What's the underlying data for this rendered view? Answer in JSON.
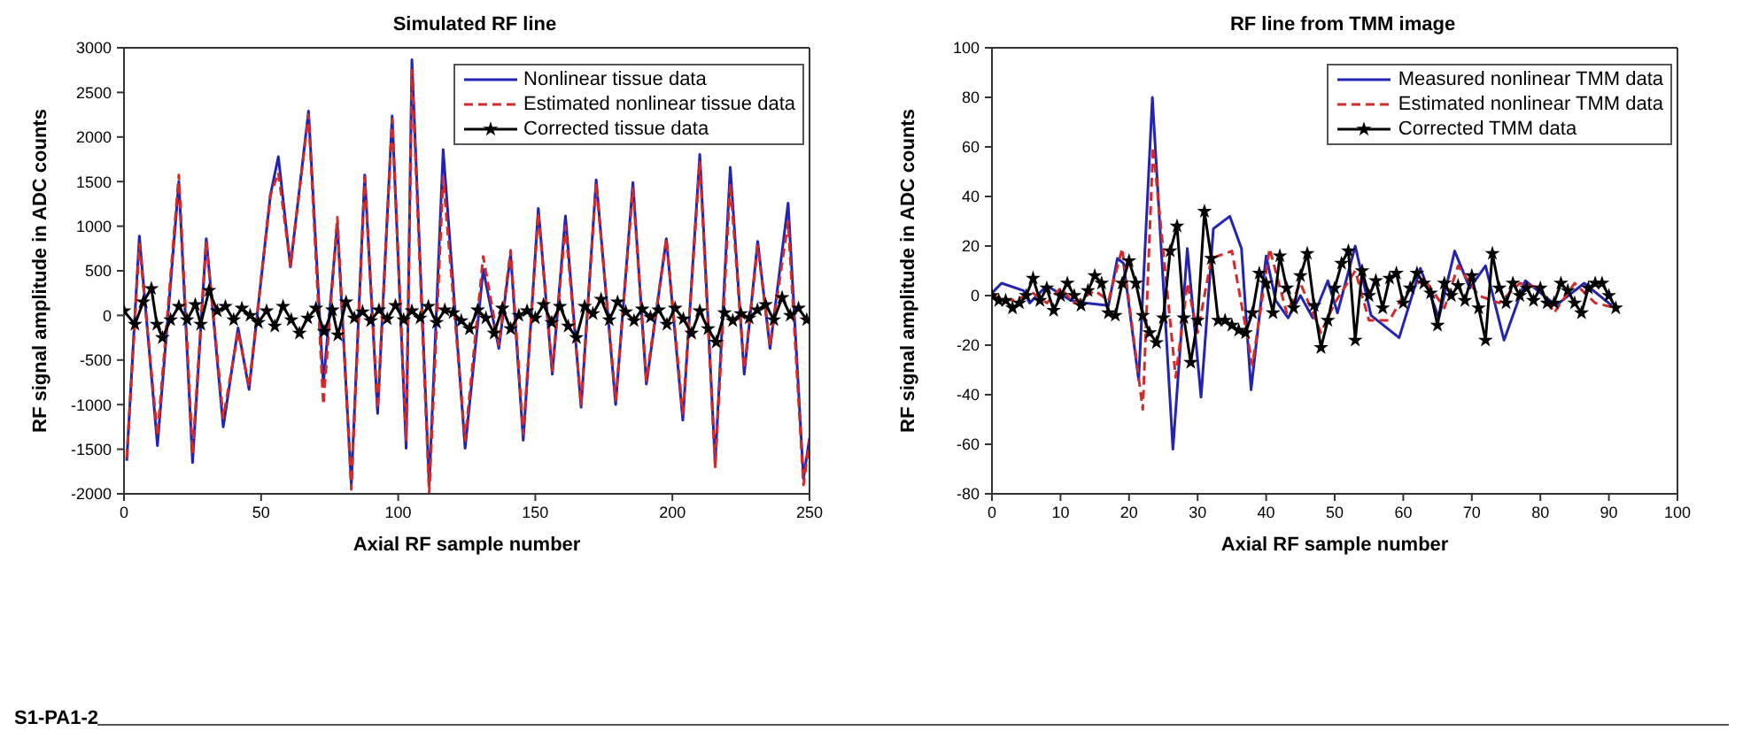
{
  "chart_data": [
    {
      "type": "line",
      "title": "Simulated RF line",
      "xlabel": "Axial RF sample number",
      "ylabel": "RF signal amplitude in ADC counts",
      "xlim": [
        0,
        250
      ],
      "xticks": [
        0,
        50,
        100,
        150,
        200,
        250
      ],
      "ylim": [
        -2000,
        3000
      ],
      "yticks": [
        -2000,
        -1500,
        -1000,
        -500,
        0,
        500,
        1000,
        1500,
        2000,
        2500,
        3000
      ],
      "grid": false,
      "legend": "top right",
      "annotations": [
        "S1-PA1-2"
      ],
      "series": [
        {
          "name": "Nonlinear tissue data",
          "color": "#2323b4",
          "line_style": "solid",
          "marker": "none",
          "x": [
            1,
            5.6,
            12.2,
            20,
            25,
            30,
            36.2,
            41.6,
            45.6,
            53.4,
            56.3,
            60.7,
            67.3,
            72.7,
            77.8,
            82.9,
            87.8,
            92.5,
            97.8,
            102.9,
            105,
            111.3,
            116.4,
            124.4,
            131,
            136.7,
            141,
            145.6,
            151.1,
            156.2,
            161,
            166.7,
            172.2,
            179.3,
            185.6,
            190.5,
            197.8,
            203.8,
            210,
            215.6,
            221.1,
            226.2,
            231.1,
            235.6,
            242.2,
            247.8,
            250
          ],
          "values": [
            -1630,
            890,
            -1460,
            1500,
            -1650,
            860,
            -1250,
            -140,
            -830,
            1350,
            1780,
            545,
            2290,
            -770,
            1030,
            -1890,
            1575,
            -1100,
            2235,
            -1490,
            2865,
            -1900,
            1860,
            -1490,
            515,
            -370,
            690,
            -1400,
            1200,
            -660,
            1115,
            -1030,
            1520,
            -1000,
            1490,
            -770,
            860,
            -1175,
            1805,
            -1660,
            1660,
            -660,
            830,
            -370,
            1260,
            -1830,
            -1375
          ]
        },
        {
          "name": "Estimated nonlinear tissue data",
          "color": "#d42a2a",
          "line_style": "dashed",
          "marker": "none",
          "x": [
            1,
            5.6,
            12.2,
            20,
            25,
            30,
            36.2,
            41.6,
            45.6,
            53.4,
            56.3,
            60.7,
            67.3,
            72.7,
            77.8,
            82.9,
            87.8,
            92.5,
            97.8,
            102.9,
            105,
            111.3,
            116.4,
            124.4,
            131,
            136.7,
            141,
            145.6,
            151.1,
            156.2,
            161,
            166.7,
            172.2,
            179.3,
            185.6,
            190.5,
            197.8,
            203.8,
            210,
            215.6,
            221.1,
            226.2,
            231.1,
            235.6,
            242.2,
            247.8,
            250
          ],
          "values": [
            -1600,
            800,
            -1350,
            1575,
            -1550,
            830,
            -1150,
            -180,
            -800,
            1350,
            1600,
            560,
            2250,
            -1000,
            1100,
            -1950,
            1550,
            -1050,
            2200,
            -1400,
            2750,
            -2000,
            1550,
            -1400,
            660,
            -330,
            730,
            -1330,
            1150,
            -620,
            1000,
            -1000,
            1480,
            -950,
            1420,
            -730,
            860,
            -1100,
            1730,
            -1700,
            1480,
            -600,
            780,
            -340,
            1050,
            -1900,
            -1400
          ]
        },
        {
          "name": "Corrected tissue data",
          "color": "#000000",
          "line_style": "solid",
          "marker": "star",
          "x": [
            0,
            4,
            7,
            10,
            12,
            14,
            17,
            20,
            23,
            26,
            28,
            31,
            34,
            37,
            40,
            43,
            46,
            49,
            52,
            55,
            58,
            61,
            64,
            67,
            70,
            73,
            76,
            78,
            81,
            84,
            87,
            90,
            93,
            96,
            99,
            102,
            105,
            108,
            111,
            114,
            117,
            120,
            123,
            126,
            129,
            132,
            135,
            138,
            141,
            144,
            147,
            150,
            153,
            156,
            159,
            162,
            165,
            168,
            171,
            174,
            177,
            180,
            183,
            186,
            189,
            192,
            195,
            198,
            201,
            204,
            207,
            210,
            213,
            216,
            219,
            222,
            225,
            228,
            231,
            234,
            237,
            240,
            243,
            246,
            249
          ],
          "values": [
            50,
            -100,
            150,
            300,
            -100,
            -250,
            -50,
            100,
            -50,
            120,
            -100,
            280,
            50,
            100,
            -50,
            80,
            0,
            -80,
            50,
            -120,
            100,
            -50,
            -200,
            -30,
            80,
            -180,
            60,
            -220,
            150,
            -30,
            40,
            -60,
            60,
            -40,
            110,
            -50,
            50,
            -30,
            100,
            -80,
            60,
            30,
            -60,
            -150,
            60,
            -30,
            -200,
            80,
            -150,
            0,
            50,
            -30,
            120,
            -80,
            100,
            -120,
            -250,
            100,
            20,
            180,
            -50,
            150,
            40,
            -60,
            70,
            -20,
            60,
            -100,
            80,
            -40,
            -200,
            50,
            -150,
            -300,
            30,
            -60,
            20,
            -30,
            60,
            120,
            -50,
            200,
            0,
            80,
            -50
          ]
        }
      ]
    },
    {
      "type": "line",
      "title": "RF line from TMM image",
      "xlabel": "Axial RF sample number",
      "ylabel": "RF signal amplitude in ADC counts",
      "xlim": [
        0,
        100
      ],
      "xticks": [
        0,
        10,
        20,
        30,
        40,
        50,
        60,
        70,
        80,
        90,
        100
      ],
      "ylim": [
        -80,
        100
      ],
      "yticks": [
        -80,
        -60,
        -40,
        -20,
        0,
        20,
        40,
        60,
        80,
        100
      ],
      "grid": false,
      "legend": "top right",
      "series": [
        {
          "name": "Measured nonlinear TMM data",
          "color": "#2323b4",
          "line_style": "solid",
          "marker": "none",
          "x": [
            0,
            1.4,
            4.6,
            5.5,
            8,
            11.5,
            13.8,
            17,
            18.3,
            19.2,
            21.4,
            23.4,
            26.4,
            28.5,
            30.5,
            32.3,
            34.7,
            36.4,
            37.8,
            40,
            41.4,
            43.2,
            45,
            46.8,
            49,
            50.4,
            53,
            55.3,
            59.4,
            62.5,
            65.2,
            67.5,
            69.7,
            72,
            74.7,
            77.8,
            82.3,
            86.4,
            90.4
          ],
          "values": [
            1,
            5,
            2,
            -3,
            4,
            -2,
            -3,
            -4,
            15,
            13,
            -34,
            80,
            -62,
            19,
            -41,
            27,
            32,
            19,
            -38,
            16,
            -2,
            -9,
            0,
            -9,
            6,
            -7,
            20,
            -8,
            -17,
            11,
            -9,
            18,
            3,
            12,
            -18,
            6,
            -4,
            5,
            -4
          ]
        },
        {
          "name": "Estimated nonlinear TMM data",
          "color": "#d42a2a",
          "line_style": "dashed",
          "marker": "none",
          "x": [
            0,
            3,
            6,
            8,
            10,
            12,
            15,
            17,
            19,
            22,
            23.5,
            26.8,
            28.5,
            30,
            32,
            35,
            38,
            40.5,
            43,
            45,
            48,
            50,
            53,
            55,
            58,
            60,
            63,
            66,
            68,
            71,
            74,
            77,
            80,
            82,
            85,
            88,
            91
          ],
          "values": [
            0,
            -2,
            1,
            -3,
            3,
            -3,
            2,
            -2,
            19,
            -46,
            60,
            -33,
            5,
            -15,
            15,
            18,
            -28,
            19,
            -7,
            5,
            -15,
            -3,
            10,
            -10,
            -10,
            0,
            7,
            -5,
            12,
            0,
            -3,
            5,
            3,
            -7,
            5,
            -3,
            -5
          ]
        },
        {
          "name": "Corrected TMM data",
          "color": "#000000",
          "line_style": "solid",
          "marker": "star",
          "x": [
            0,
            1,
            2,
            3,
            4,
            5,
            6,
            7,
            8,
            9,
            10,
            11,
            12,
            13,
            14,
            15,
            16,
            17,
            18,
            19,
            20,
            21,
            22,
            23,
            24,
            25,
            26,
            27,
            28,
            29,
            30,
            31,
            32,
            33,
            34,
            35,
            36,
            37,
            38,
            39,
            40,
            41,
            42,
            43,
            44,
            45,
            46,
            47,
            48,
            49,
            50,
            51,
            52,
            53,
            54,
            55,
            56,
            57,
            58,
            59,
            60,
            61,
            62,
            63,
            64,
            65,
            66,
            67,
            68,
            69,
            70,
            71,
            72,
            73,
            74,
            75,
            76,
            77,
            78,
            79,
            80,
            81,
            82,
            83,
            84,
            85,
            86,
            87,
            88,
            89,
            90,
            91
          ],
          "values": [
            0,
            -2,
            -2,
            -5,
            -3,
            0,
            7,
            -2,
            3,
            -6,
            0,
            5,
            0,
            -4,
            2,
            8,
            5,
            -7,
            -8,
            5,
            14,
            5,
            -8,
            -15,
            -19,
            -9,
            18,
            28,
            -9,
            -27,
            -10,
            34,
            15,
            -10,
            -10,
            -12,
            -14,
            -15,
            -7,
            9,
            5,
            -7,
            16,
            3,
            -5,
            8,
            17,
            -4,
            -21,
            -10,
            3,
            13,
            18,
            -18,
            10,
            0,
            6,
            -5,
            7,
            9,
            -3,
            3,
            9,
            5,
            1,
            -12,
            5,
            0,
            4,
            -2,
            8,
            -5,
            -18,
            17,
            3,
            -3,
            5,
            0,
            3,
            -2,
            3,
            -3,
            -3,
            5,
            2,
            -3,
            -7,
            3,
            5,
            5,
            0,
            -5
          ]
        }
      ]
    }
  ]
}
